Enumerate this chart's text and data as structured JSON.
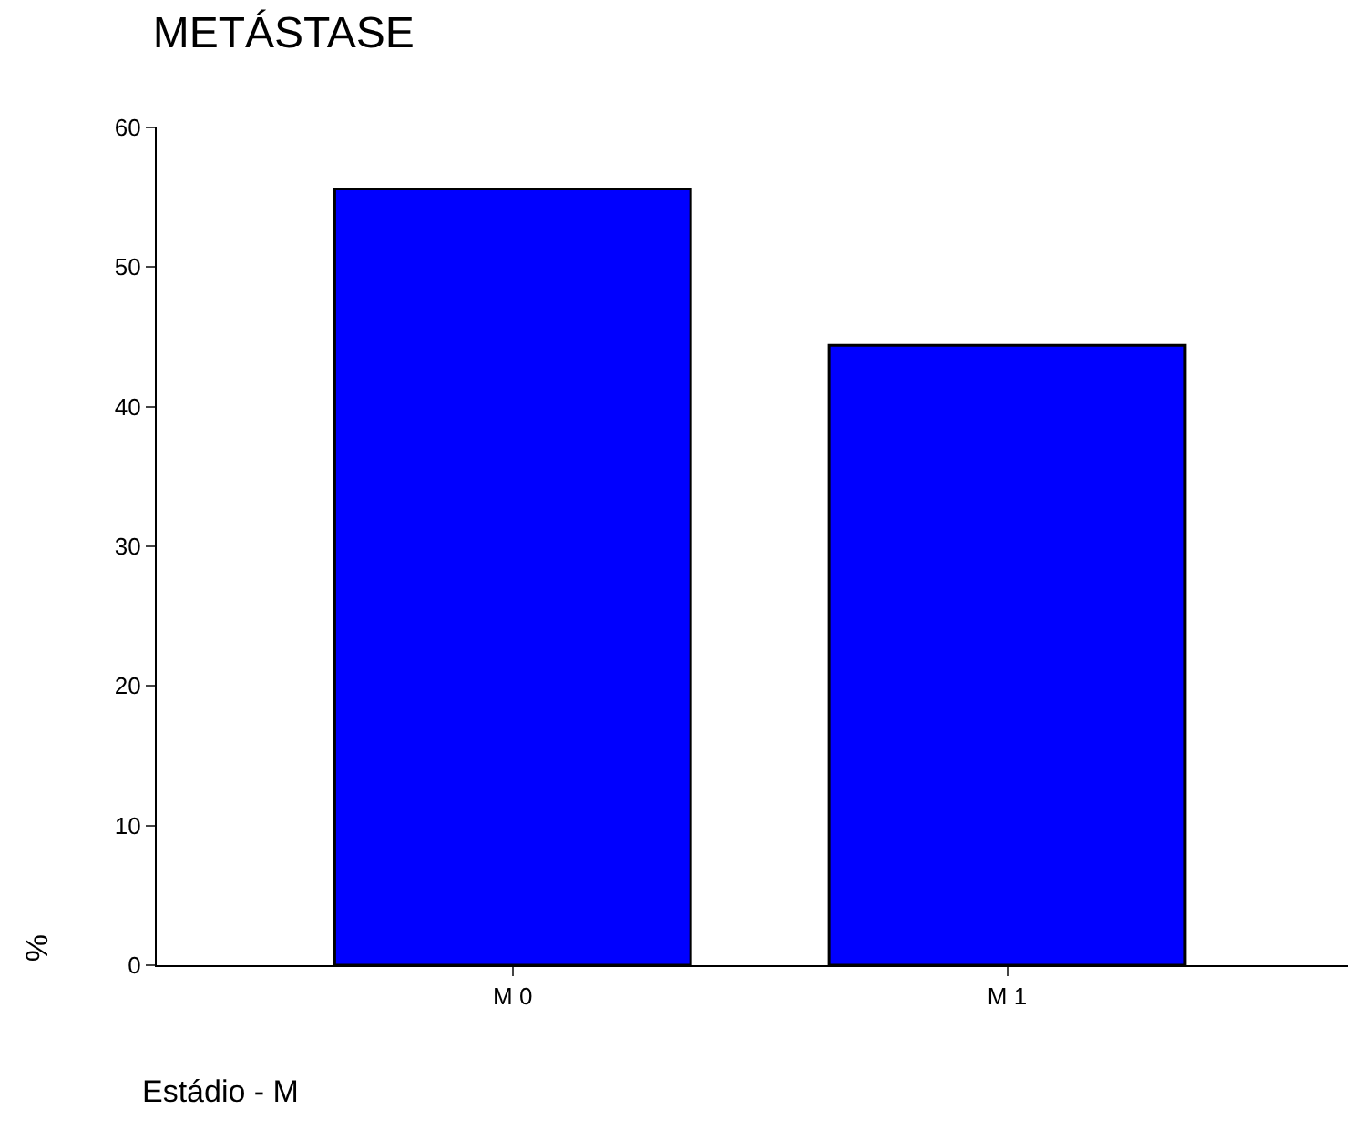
{
  "chart_data": {
    "type": "bar",
    "title": "METÁSTASE",
    "xlabel": "Estádio - M",
    "ylabel": "%",
    "categories": [
      "M 0",
      "M 1"
    ],
    "values": [
      55.6,
      44.4
    ],
    "color": "#0000ff",
    "ylim": [
      0,
      60
    ],
    "yticks": [
      0,
      10,
      20,
      30,
      40,
      50,
      60
    ]
  }
}
